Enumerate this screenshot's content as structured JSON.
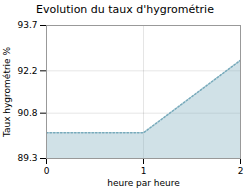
{
  "chart_data": {
    "type": "area",
    "title": "Evolution du taux d'hygrométrie",
    "xlabel": "heure par heure",
    "ylabel": "Taux hygrométrie %",
    "x": [
      0,
      1,
      2
    ],
    "values": [
      90.15,
      90.15,
      92.55
    ],
    "xlim": [
      0,
      2
    ],
    "ylim": [
      89.3,
      93.7
    ],
    "xticks": [
      0,
      1,
      2
    ],
    "yticks": [
      89.3,
      90.8,
      92.2,
      93.7
    ],
    "color": "#77aabb",
    "line_style": "dotted",
    "grid": true
  }
}
